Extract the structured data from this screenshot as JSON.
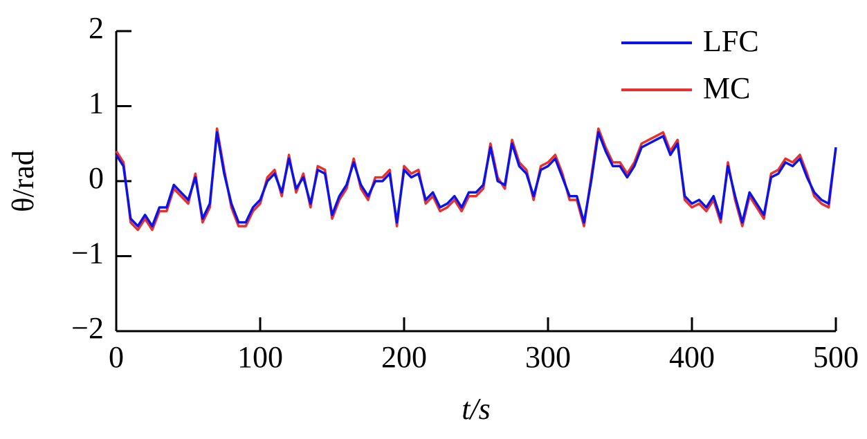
{
  "chart_data": {
    "type": "line",
    "x_label": "t/s",
    "y_label": "θ/rad",
    "x": [
      0,
      5,
      10,
      15,
      20,
      25,
      30,
      35,
      40,
      45,
      50,
      55,
      60,
      65,
      70,
      75,
      80,
      85,
      90,
      95,
      100,
      105,
      110,
      115,
      120,
      125,
      130,
      135,
      140,
      145,
      150,
      155,
      160,
      165,
      170,
      175,
      180,
      185,
      190,
      195,
      200,
      205,
      210,
      215,
      220,
      225,
      230,
      235,
      240,
      245,
      250,
      255,
      260,
      265,
      270,
      275,
      280,
      285,
      290,
      295,
      300,
      305,
      310,
      315,
      320,
      325,
      330,
      335,
      340,
      345,
      350,
      355,
      360,
      365,
      370,
      375,
      380,
      385,
      390,
      395,
      400,
      405,
      410,
      415,
      420,
      425,
      430,
      435,
      440,
      445,
      450,
      455,
      460,
      465,
      470,
      475,
      480,
      485,
      490,
      495,
      500
    ],
    "series": [
      {
        "name": "MC",
        "color": "#e8302e",
        "values": [
          0.4,
          0.25,
          -0.55,
          -0.65,
          -0.5,
          -0.65,
          -0.4,
          -0.4,
          -0.1,
          -0.2,
          -0.3,
          0.1,
          -0.55,
          -0.35,
          0.7,
          0.15,
          -0.35,
          -0.6,
          -0.6,
          -0.4,
          -0.3,
          0.05,
          0.15,
          -0.2,
          0.35,
          -0.15,
          0.1,
          -0.35,
          0.2,
          0.15,
          -0.5,
          -0.25,
          -0.1,
          0.3,
          -0.1,
          -0.25,
          0.05,
          0.05,
          0.15,
          -0.6,
          0.2,
          0.1,
          0.15,
          -0.3,
          -0.2,
          -0.4,
          -0.35,
          -0.25,
          -0.4,
          -0.2,
          -0.2,
          -0.1,
          0.5,
          0.05,
          -0.1,
          0.55,
          0.25,
          0.15,
          -0.25,
          0.2,
          0.25,
          0.35,
          0.1,
          -0.25,
          -0.25,
          -0.6,
          0.05,
          0.7,
          0.45,
          0.25,
          0.25,
          0.1,
          0.25,
          0.5,
          0.55,
          0.6,
          0.65,
          0.4,
          0.55,
          -0.25,
          -0.35,
          -0.3,
          -0.4,
          -0.25,
          -0.55,
          0.25,
          -0.25,
          -0.6,
          -0.2,
          -0.35,
          -0.5,
          0.1,
          0.15,
          0.3,
          0.25,
          0.35,
          0.1,
          -0.2,
          -0.3,
          -0.35,
          0.45
        ]
      },
      {
        "name": "LFC",
        "color": "#0a14e6",
        "values": [
          0.35,
          0.2,
          -0.5,
          -0.6,
          -0.45,
          -0.6,
          -0.35,
          -0.35,
          -0.05,
          -0.15,
          -0.25,
          0.05,
          -0.5,
          -0.3,
          0.65,
          0.1,
          -0.3,
          -0.55,
          -0.55,
          -0.35,
          -0.25,
          0.0,
          0.1,
          -0.15,
          0.3,
          -0.1,
          0.05,
          -0.3,
          0.15,
          0.1,
          -0.45,
          -0.2,
          -0.05,
          0.25,
          -0.05,
          -0.2,
          0.0,
          0.0,
          0.1,
          -0.55,
          0.15,
          0.05,
          0.1,
          -0.25,
          -0.15,
          -0.35,
          -0.3,
          -0.2,
          -0.35,
          -0.15,
          -0.15,
          -0.05,
          0.45,
          0.0,
          -0.05,
          0.5,
          0.2,
          0.1,
          -0.2,
          0.15,
          0.2,
          0.3,
          0.05,
          -0.2,
          -0.2,
          -0.55,
          0.0,
          0.65,
          0.4,
          0.2,
          0.2,
          0.05,
          0.2,
          0.45,
          0.5,
          0.55,
          0.6,
          0.35,
          0.5,
          -0.2,
          -0.3,
          -0.25,
          -0.35,
          -0.2,
          -0.5,
          0.2,
          -0.2,
          -0.55,
          -0.15,
          -0.3,
          -0.45,
          0.05,
          0.1,
          0.25,
          0.2,
          0.3,
          0.05,
          -0.15,
          -0.25,
          -0.3,
          0.45
        ]
      }
    ],
    "xlim": [
      0,
      500
    ],
    "xticks": [
      0,
      100,
      200,
      300,
      400,
      500
    ],
    "ylim": [
      -2,
      2
    ],
    "yticks": [
      {
        "value": -2,
        "label": "−2"
      },
      {
        "value": -1,
        "label": "−1"
      },
      0,
      1,
      2
    ],
    "legend": "upper right"
  }
}
